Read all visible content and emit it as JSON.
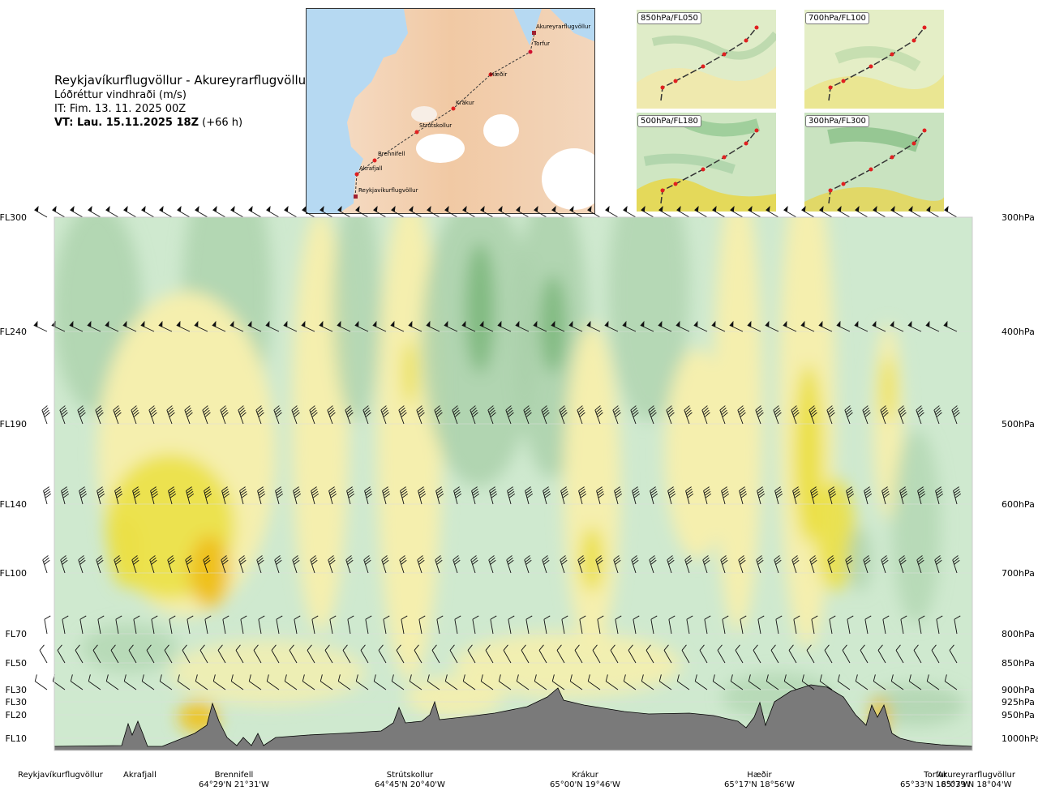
{
  "header": {
    "route_title": "Reykjavíkurflugvöllur - Akureyrarflugvöllur",
    "parameter": "Lóðréttur vindhraði (m/s)",
    "issue_time": "IT: Fim. 13. 11. 2025 00Z",
    "valid_time_bold": "VT: Lau. 15.11.2025 18Z",
    "valid_time_suffix": " (+66 h)"
  },
  "route_map": {
    "waypoints": [
      {
        "name": "Akureyrarflugvöllur"
      },
      {
        "name": "Torfur"
      },
      {
        "name": "Hæðir"
      },
      {
        "name": "Krákur"
      },
      {
        "name": "Strútskollur"
      },
      {
        "name": "Brennifell"
      },
      {
        "name": "Akrafjall"
      },
      {
        "name": "Reykjavíkurflugvöllur"
      }
    ]
  },
  "level_maps": [
    {
      "label": "850hPa/FL050"
    },
    {
      "label": "700hPa/FL100"
    },
    {
      "label": "500hPa/FL180"
    },
    {
      "label": "300hPa/FL300"
    }
  ],
  "chart_data": {
    "type": "heatmap",
    "title": "Reykjavíkurflugvöllur - Akureyrarflugvöllur",
    "variable": "Lóðréttur vindhraði (m/s)",
    "y_axis_left": [
      "FL300",
      "FL240",
      "FL190",
      "FL140",
      "FL100",
      "FL70",
      "FL50",
      "FL30",
      "FL30",
      "FL20",
      "FL10"
    ],
    "y_axis_right": [
      "300hPa",
      "400hPa",
      "500hPa",
      "600hPa",
      "700hPa",
      "800hPa",
      "850hPa",
      "900hPa",
      "925hPa",
      "950hPa",
      "1000hPa"
    ],
    "pressure_levels_hpa": [
      300,
      400,
      500,
      600,
      700,
      800,
      850,
      900,
      925,
      950,
      1000
    ],
    "ylim_hpa": [
      1000,
      300
    ],
    "x_stations": [
      {
        "name": "Reykjavíkurflugvöllur",
        "coord": ""
      },
      {
        "name": "Akrafjall",
        "coord": ""
      },
      {
        "name": "Brennifell",
        "coord": "64°29'N 21°31'W"
      },
      {
        "name": "Strútskollur",
        "coord": "64°45'N 20°40'W"
      },
      {
        "name": "Krákur",
        "coord": "65°00'N 19°46'W"
      },
      {
        "name": "Hæðir",
        "coord": "65°17'N 18°56'W"
      },
      {
        "name": "Torfur",
        "coord": "65°33'N 18°07'W"
      },
      {
        "name": "Akureyrarflugvöllur",
        "coord": "65°39'N 18°04'W"
      }
    ],
    "colors": {
      "strong_down": "#7db87d",
      "down": "#a9d0a9",
      "weak_down": "#cfe9cf",
      "neutral": "#f5fbef",
      "weak_up": "#f5efae",
      "up": "#ebe046",
      "strong_up": "#efc11a",
      "terrain": "#7a7a7a"
    },
    "grid": true
  }
}
